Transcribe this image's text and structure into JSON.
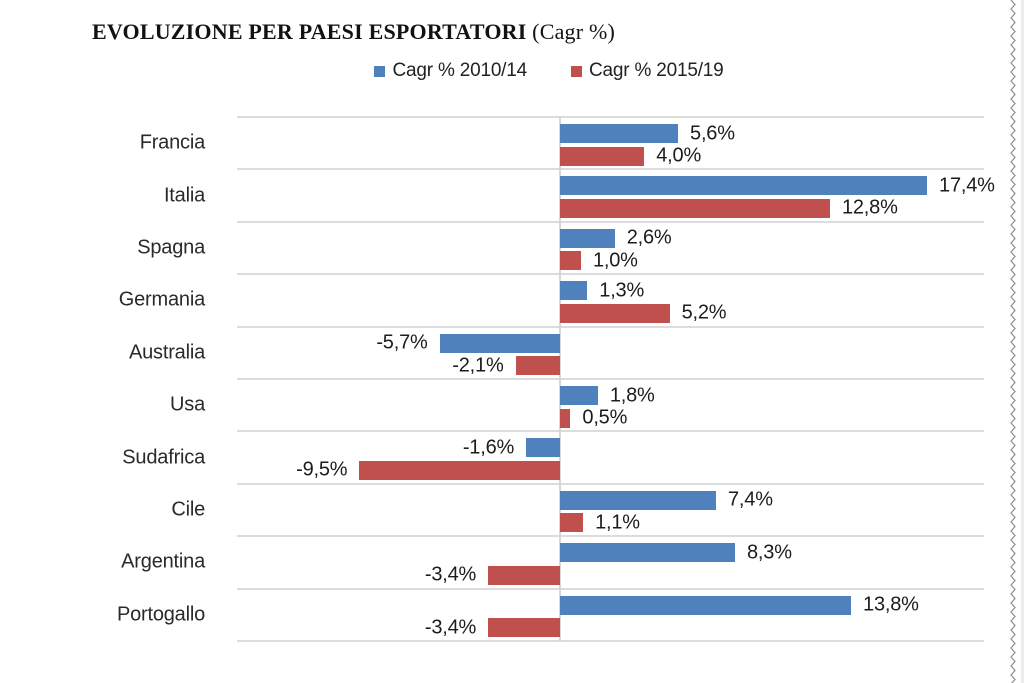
{
  "page": {
    "title_main": "EVOLUZIONE PER PAESI ESPORTATORI",
    "title_suffix": " (Cagr %)"
  },
  "colors": {
    "series_2010_14": "#4F81BD",
    "series_2015_19": "#C0504D",
    "gridline": "#DCDCDC",
    "axis_zero_line": "#D6D6D6",
    "label_text": "#1F1F1F",
    "page_edge": "#8E8E8E"
  },
  "chart_data": {
    "type": "bar",
    "orientation": "horizontal",
    "title": "EVOLUZIONE PER PAESI ESPORTATORI (Cagr %)",
    "categories": [
      "Francia",
      "Italia",
      "Spagna",
      "Germania",
      "Australia",
      "Usa",
      "Sudafrica",
      "Cile",
      "Argentina",
      "Portogallo"
    ],
    "series": [
      {
        "name": "Cagr % 2010/14",
        "color": "#4F81BD",
        "values": [
          5.6,
          17.4,
          2.6,
          1.3,
          -5.7,
          1.8,
          -1.6,
          7.4,
          8.3,
          13.8
        ],
        "labels": [
          "5,6%",
          "17,4%",
          "2,6%",
          "1,3%",
          "-5,7%",
          "1,8%",
          "-1,6%",
          "7,4%",
          "8,3%",
          "13,8%"
        ]
      },
      {
        "name": "Cagr % 2015/19",
        "color": "#C0504D",
        "values": [
          4.0,
          12.8,
          1.0,
          5.2,
          -2.1,
          0.5,
          -9.5,
          1.1,
          -3.4,
          -3.4
        ],
        "labels": [
          "4,0%",
          "12,8%",
          "1,0%",
          "5,2%",
          "-2,1%",
          "0,5%",
          "-9,5%",
          "1,1%",
          "-3,4%",
          "-3,4%"
        ]
      }
    ],
    "xlim": [
      -15.3,
      20.1
    ],
    "value_format": "decimal-comma-percent",
    "grid": "horizontal-row-separators",
    "legend_position": "top-center",
    "data_labels": "outside-end"
  }
}
